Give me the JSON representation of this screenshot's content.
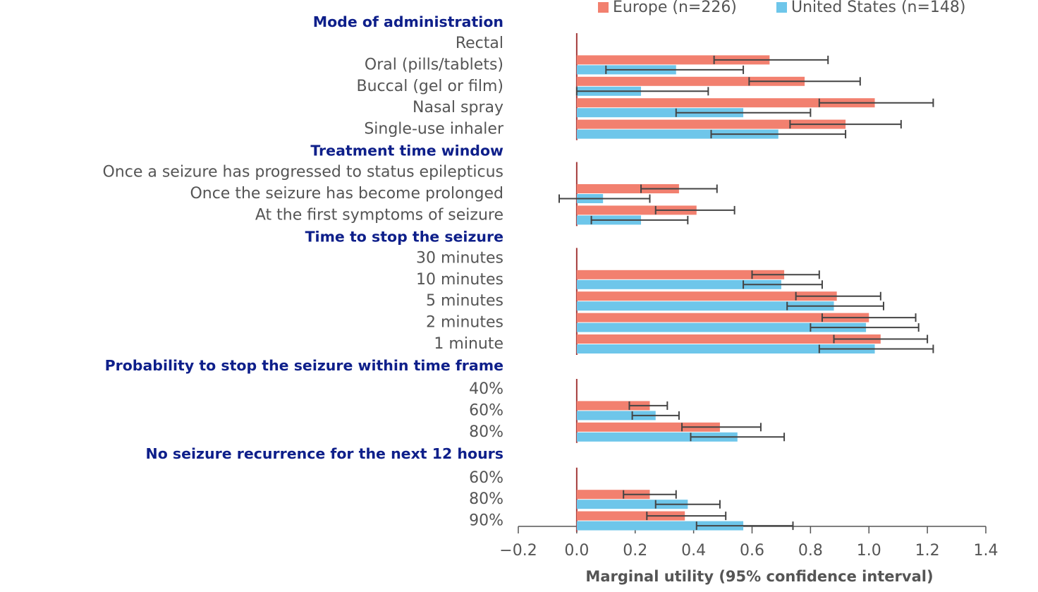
{
  "chart_data": {
    "type": "bar",
    "orientation": "horizontal",
    "xlabel": "Marginal utility (95% confidence interval)",
    "xlim": [
      -0.2,
      1.4
    ],
    "xticks": [
      {
        "value": -0.2,
        "label": "−0.2"
      },
      {
        "value": 0,
        "label": "0.0"
      },
      0.2,
      0.4,
      0.6,
      0.8,
      {
        "value": 1,
        "label": "1.0"
      },
      1.2,
      1.4
    ],
    "legend": "top",
    "series": [
      {
        "name": "Europe (n=226)",
        "color": "#f2806f"
      },
      {
        "name": "United States (n=148)",
        "color": "#6ec6ea"
      }
    ],
    "groups": [
      {
        "title": "Mode of administration",
        "categories": [
          "Rectal",
          "Oral (pills/tablets)",
          "Buccal (gel or film)",
          "Nasal spray",
          "Single-use inhaler"
        ],
        "series": [
          {
            "values": [
              null,
              0.66,
              0.78,
              1.02,
              0.92
            ],
            "ci_low": [
              null,
              0.47,
              0.59,
              0.83,
              0.73
            ],
            "ci_high": [
              null,
              0.86,
              0.97,
              1.22,
              1.11
            ]
          },
          {
            "values": [
              null,
              0.34,
              0.22,
              0.57,
              0.69
            ],
            "ci_low": [
              null,
              0.1,
              0.0,
              0.34,
              0.46
            ],
            "ci_high": [
              null,
              0.57,
              0.45,
              0.8,
              0.92
            ]
          }
        ]
      },
      {
        "title": "Treatment time window",
        "categories": [
          "Once a seizure has progressed to status epilepticus",
          "Once the seizure has become prolonged",
          "At the first symptoms of seizure"
        ],
        "series": [
          {
            "values": [
              null,
              0.35,
              0.41
            ],
            "ci_low": [
              null,
              0.22,
              0.27
            ],
            "ci_high": [
              null,
              0.48,
              0.54
            ]
          },
          {
            "values": [
              null,
              0.09,
              0.22
            ],
            "ci_low": [
              null,
              -0.06,
              0.05
            ],
            "ci_high": [
              null,
              0.25,
              0.38
            ]
          }
        ]
      },
      {
        "title": "Time to stop the seizure",
        "categories": [
          "30 minutes",
          "10 minutes",
          "5 minutes",
          "2 minutes",
          "1 minute"
        ],
        "series": [
          {
            "values": [
              null,
              0.71,
              0.89,
              1.0,
              1.04
            ],
            "ci_low": [
              null,
              0.6,
              0.75,
              0.84,
              0.88
            ],
            "ci_high": [
              null,
              0.83,
              1.04,
              1.16,
              1.2
            ]
          },
          {
            "values": [
              null,
              0.7,
              0.88,
              0.99,
              1.02
            ],
            "ci_low": [
              null,
              0.57,
              0.72,
              0.8,
              0.83
            ],
            "ci_high": [
              null,
              0.84,
              1.05,
              1.17,
              1.22
            ]
          }
        ]
      },
      {
        "title": "Probability to stop the seizure within time frame",
        "categories": [
          "40%",
          "60%",
          "80%"
        ],
        "series": [
          {
            "values": [
              null,
              0.25,
              0.49
            ],
            "ci_low": [
              null,
              0.18,
              0.36
            ],
            "ci_high": [
              null,
              0.31,
              0.63
            ]
          },
          {
            "values": [
              null,
              0.27,
              0.55
            ],
            "ci_low": [
              null,
              0.19,
              0.39
            ],
            "ci_high": [
              null,
              0.35,
              0.71
            ]
          }
        ]
      },
      {
        "title": "No seizure recurrence for the next 12 hours",
        "categories": [
          "60%",
          "80%",
          "90%"
        ],
        "series": [
          {
            "values": [
              null,
              0.25,
              0.37
            ],
            "ci_low": [
              null,
              0.16,
              0.24
            ],
            "ci_high": [
              null,
              0.34,
              0.51
            ]
          },
          {
            "values": [
              null,
              0.38,
              0.57
            ],
            "ci_low": [
              null,
              0.27,
              0.41
            ],
            "ci_high": [
              null,
              0.49,
              0.74
            ]
          }
        ]
      }
    ]
  }
}
